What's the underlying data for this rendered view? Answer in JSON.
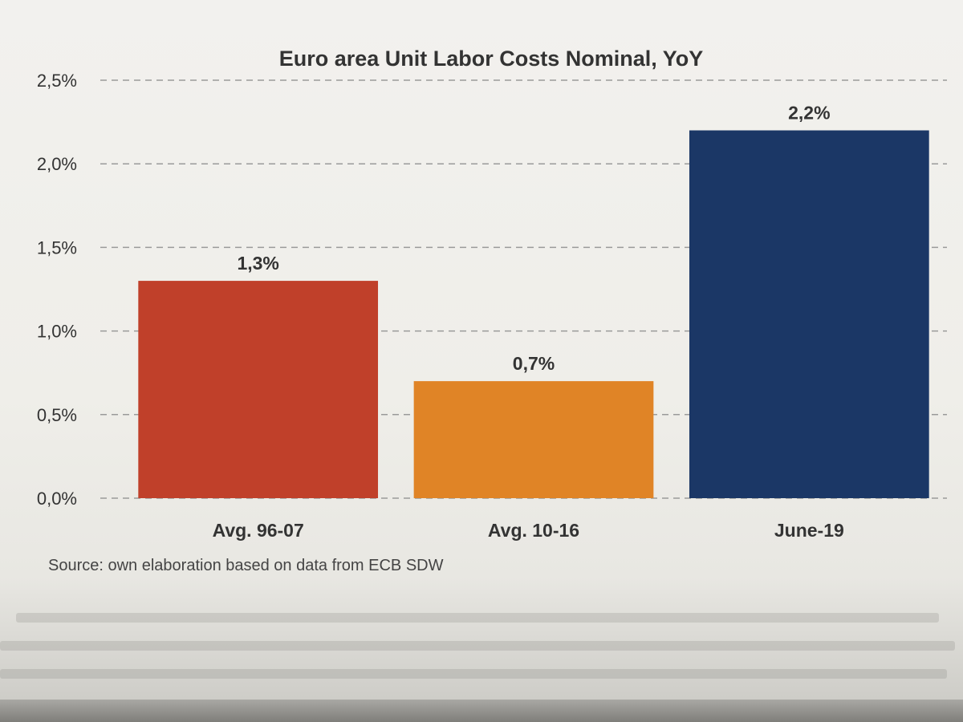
{
  "chart_data": {
    "type": "bar",
    "title": "Euro area Unit Labor Costs Nominal, YoY",
    "categories": [
      "Avg. 96-07",
      "Avg. 10-16",
      "June-19"
    ],
    "values": [
      1.3,
      0.7,
      2.2
    ],
    "value_labels": [
      "1,3%",
      "0,7%",
      "2,2%"
    ],
    "colors": [
      "#c0402a",
      "#e08426",
      "#1b3766"
    ],
    "ylim": [
      0,
      2.5
    ],
    "yticks": [
      0,
      0.5,
      1.0,
      1.5,
      2.0,
      2.5
    ],
    "ytick_labels": [
      "0,0%",
      "0,5%",
      "1,0%",
      "1,5%",
      "2,0%",
      "2,5%"
    ],
    "grid": true,
    "grid_style": "dashed",
    "legend": "none"
  },
  "source": "Source: own elaboration based on data from ECB SDW"
}
